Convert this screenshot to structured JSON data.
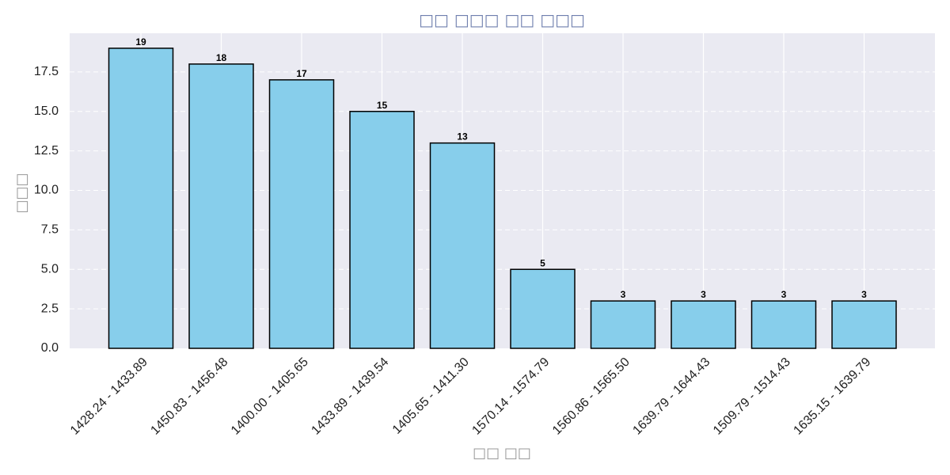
{
  "chart_data": {
    "type": "bar",
    "title": "□□ □□□ □□ □□□",
    "xlabel": "□□ □□",
    "ylabel": "□□□",
    "categories": [
      "1428.24 - 1433.89",
      "1450.83 - 1456.48",
      "1400.00 - 1405.65",
      "1433.89 - 1439.54",
      "1405.65 - 1411.30",
      "1570.14 - 1574.79",
      "1560.86 - 1565.50",
      "1639.79 - 1644.43",
      "1509.79 - 1514.43",
      "1635.15 - 1639.79"
    ],
    "values": [
      19,
      18,
      17,
      15,
      13,
      5,
      3,
      3,
      3,
      3
    ],
    "data_labels": [
      "19",
      "18",
      "17",
      "15",
      "13",
      "5",
      "3",
      "3",
      "3",
      "3"
    ],
    "y_ticks": [
      "0.0",
      "2.5",
      "5.0",
      "7.5",
      "10.0",
      "12.5",
      "15.0",
      "17.5"
    ],
    "ylim": [
      0,
      19.95
    ],
    "grid": true,
    "colors": {
      "bar_fill": "#87ceeb",
      "bar_edge": "#000000",
      "plot_background": "#eaeaf2",
      "grid": "#ffffff"
    }
  }
}
